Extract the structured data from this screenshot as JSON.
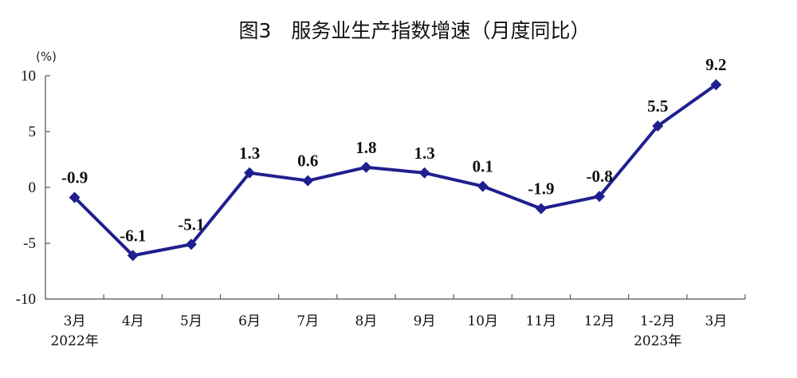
{
  "chart_data": {
    "type": "line",
    "title": "图3　服务业生产指数增速（月度同比）",
    "yunit": "(%)",
    "categories": [
      "3月",
      "4月",
      "5月",
      "6月",
      "7月",
      "8月",
      "9月",
      "10月",
      "11月",
      "12月",
      "1-2月",
      "3月"
    ],
    "year_labels": [
      {
        "index": 0,
        "text": "2022年"
      },
      {
        "index": 10,
        "text": "2023年"
      }
    ],
    "series": [
      {
        "values": [
          -0.9,
          -6.1,
          -5.1,
          1.3,
          0.6,
          1.8,
          1.3,
          0.1,
          -1.9,
          -0.8,
          5.5,
          9.2
        ]
      }
    ],
    "data_labels": [
      "-0.9",
      "-6.1",
      "-5.1",
      "1.3",
      "0.6",
      "1.8",
      "1.3",
      "0.1",
      "-1.9",
      "-0.8",
      "5.5",
      "9.2"
    ],
    "ylim": [
      -10,
      10
    ],
    "yticks": [
      10,
      5,
      0,
      -5,
      -10
    ],
    "ytick_labels": [
      "10",
      "5",
      "0",
      "-5",
      "-10"
    ],
    "grid": false,
    "line_color": "#1f1f8f"
  }
}
